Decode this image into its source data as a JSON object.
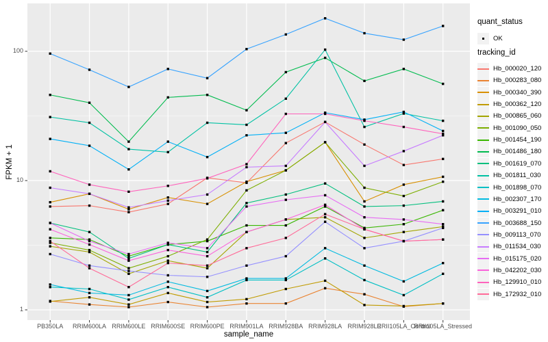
{
  "figure": {
    "background": "#FFFFFF",
    "panel_background": "#EBEBEB",
    "gridline_color": "#FFFFFF",
    "tick_mark_color": "#333333",
    "axis_text_color": "#4D4D4D",
    "point_color": "#000000",
    "legend_key_fill": "#F2F2F2"
  },
  "axes": {
    "x_title": "sample_name",
    "y_title": "FPKM + 1",
    "y_tick_labels": [
      "100",
      "10",
      "1"
    ],
    "x_tick_labels": [
      "PB350LA",
      "RRIM600LA",
      "RRIM600LE",
      "RRIM600SE",
      "RRIM600PE",
      "RRIM901LA",
      "RRIM928BA",
      "RRIM928LA",
      "RRIM928LE",
      "RRII105LA_Control",
      "RRII105LA_Stressed"
    ]
  },
  "legend": {
    "quant_status": {
      "title": "quant_status",
      "ok_label": "OK",
      "point_shape": "filled-square",
      "point_color": "#000000"
    },
    "tracking_id": {
      "title": "tracking_id"
    }
  },
  "chart_data": {
    "type": "line",
    "title": "",
    "xlabel": "sample_name",
    "ylabel": "FPKM + 1",
    "y_scale": "log10",
    "y_ticks": [
      1,
      10,
      100
    ],
    "y_minor_ticks": [
      3.162,
      31.62
    ],
    "ylim": [
      0.83,
      230
    ],
    "grid": true,
    "legend_position": "right",
    "point_shape": "filled-square",
    "point_color": "#000000",
    "categories": [
      "PB350LA",
      "RRIM600LA",
      "RRIM600LE",
      "RRIM600SE",
      "RRIM600PE",
      "RRIM901LA",
      "RRIM928BA",
      "RRIM928LA",
      "RRIM928LE",
      "RRII105LA_Control",
      "RRII105LA_Stressed"
    ],
    "series": [
      {
        "name": "Hb_000020_120",
        "color": "#F8766D",
        "values": [
          6.3,
          6.4,
          5.7,
          6.6,
          10.5,
          9.6,
          19.5,
          28.4,
          19.0,
          13.2,
          14.7
        ]
      },
      {
        "name": "Hb_000283_080",
        "color": "#EA8331",
        "values": [
          1.17,
          1.1,
          1.05,
          1.15,
          1.05,
          1.12,
          1.12,
          1.47,
          1.32,
          1.06,
          1.12
        ]
      },
      {
        "name": "Hb_000340_390",
        "color": "#D89000",
        "values": [
          6.8,
          7.9,
          6.0,
          7.4,
          6.6,
          9.8,
          12.0,
          19.8,
          6.9,
          9.3,
          10.7
        ]
      },
      {
        "name": "Hb_000362_120",
        "color": "#C09B00",
        "values": [
          1.16,
          1.25,
          1.1,
          1.35,
          1.15,
          1.21,
          1.45,
          1.68,
          1.09,
          1.07,
          1.12
        ]
      },
      {
        "name": "Hb_000865_060",
        "color": "#A3A500",
        "values": [
          3.1,
          2.8,
          1.9,
          2.4,
          2.1,
          4.0,
          5.0,
          5.2,
          3.6,
          4.0,
          4.4
        ]
      },
      {
        "name": "Hb_001090_050",
        "color": "#7CAE00",
        "values": [
          3.3,
          2.9,
          2.1,
          2.6,
          3.5,
          8.4,
          12.0,
          19.8,
          8.8,
          7.6,
          9.8
        ]
      },
      {
        "name": "Hb_001454_190",
        "color": "#39B600",
        "values": [
          3.6,
          3.5,
          2.6,
          3.2,
          3.4,
          4.5,
          4.5,
          6.3,
          4.3,
          4.6,
          5.9
        ]
      },
      {
        "name": "Hb_001486_180",
        "color": "#00BB4E",
        "values": [
          46,
          40,
          20,
          44,
          46,
          35,
          69,
          89,
          59,
          73,
          56
        ]
      },
      {
        "name": "Hb_001619_070",
        "color": "#00BF7D",
        "values": [
          4.7,
          4.0,
          2.5,
          3.2,
          2.8,
          6.7,
          7.8,
          9.5,
          6.3,
          6.4,
          6.9
        ]
      },
      {
        "name": "Hb_001811_030",
        "color": "#00C1A3",
        "values": [
          31,
          28,
          17.5,
          16.6,
          28,
          27,
          43,
          103,
          26,
          33,
          29
        ]
      },
      {
        "name": "Hb_001898_070",
        "color": "#00BFC4",
        "values": [
          1.5,
          1.45,
          1.2,
          1.5,
          1.25,
          1.7,
          1.7,
          2.5,
          1.7,
          1.3,
          1.9
        ]
      },
      {
        "name": "Hb_002307_170",
        "color": "#00BAE0",
        "values": [
          1.57,
          1.35,
          1.3,
          1.65,
          1.4,
          1.75,
          1.75,
          3.0,
          2.2,
          1.66,
          2.3
        ]
      },
      {
        "name": "Hb_003291_010",
        "color": "#00B0F6",
        "values": [
          21,
          18.6,
          12.2,
          20,
          15.2,
          22.4,
          23.4,
          33.5,
          29.6,
          34,
          24.2
        ]
      },
      {
        "name": "Hb_003688_150",
        "color": "#35A2FF",
        "values": [
          96,
          72,
          53,
          73,
          62,
          104,
          135,
          180,
          138,
          123,
          157
        ]
      },
      {
        "name": "Hb_009113_070",
        "color": "#9590FF",
        "values": [
          2.7,
          2.2,
          2.0,
          1.85,
          1.8,
          2.2,
          2.6,
          4.8,
          3.0,
          3.4,
          4.3
        ]
      },
      {
        "name": "Hb_011534_030",
        "color": "#C77CFF",
        "values": [
          8.8,
          7.9,
          6.2,
          7.0,
          7.8,
          12.7,
          13.0,
          28.4,
          13.0,
          16.9,
          22.4
        ]
      },
      {
        "name": "Hb_015175_020",
        "color": "#E76BF3",
        "values": [
          4.7,
          3.4,
          2.7,
          3.3,
          3.0,
          6.3,
          7.1,
          7.7,
          5.2,
          5.0,
          4.6
        ]
      },
      {
        "name": "Hb_042202_030",
        "color": "#FA62DB",
        "values": [
          4.2,
          3.2,
          2.4,
          2.9,
          2.6,
          4.0,
          5.0,
          6.5,
          4.2,
          3.4,
          3.5
        ]
      },
      {
        "name": "Hb_129910_010",
        "color": "#FF62BC",
        "values": [
          11.8,
          9.3,
          8.2,
          9.1,
          10.4,
          13.4,
          32.8,
          32.8,
          29,
          26,
          23
        ]
      },
      {
        "name": "Hb_172932_010",
        "color": "#FF6A98",
        "values": [
          3.4,
          2.1,
          1.5,
          2.3,
          2.2,
          3.0,
          3.6,
          5.5,
          4.2,
          3.4,
          3.5
        ]
      }
    ]
  }
}
